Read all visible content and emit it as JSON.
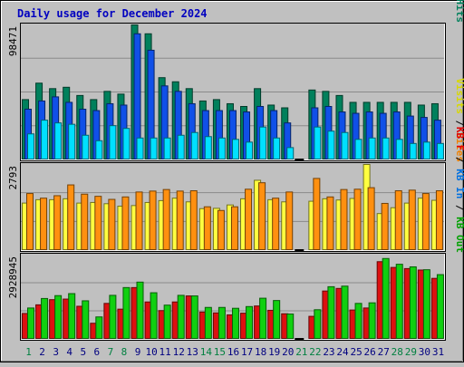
{
  "chart_data": {
    "type": "bar",
    "title": "Daily usage for December 2024",
    "categories": [
      "1",
      "2",
      "3",
      "4",
      "5",
      "6",
      "7",
      "8",
      "9",
      "10",
      "11",
      "12",
      "13",
      "14",
      "15",
      "16",
      "17",
      "18",
      "19",
      "20",
      "21",
      "22",
      "23",
      "24",
      "25",
      "26",
      "27",
      "28",
      "29",
      "30",
      "31"
    ],
    "weekend_days": [
      "1",
      "7",
      "8",
      "14",
      "15",
      "21",
      "22",
      "28",
      "29"
    ],
    "panels": [
      {
        "name": "hits-panel",
        "ymax_label": "98471",
        "ymax": 98471,
        "side_labels": [
          {
            "text": "Pages",
            "color": "#00c0e0"
          },
          {
            "text": " / ",
            "color": "#000000"
          },
          {
            "text": "Files",
            "color": "#0040e0"
          },
          {
            "text": " / ",
            "color": "#000000"
          },
          {
            "text": "Hits",
            "color": "#00805c"
          }
        ],
        "series": [
          {
            "name": "Hits",
            "color": "#00805c",
            "values": [
              44000,
              56000,
              52000,
              53000,
              47000,
              44000,
              50000,
              48000,
              98471,
              92000,
              60000,
              57000,
              52000,
              43000,
              44000,
              41000,
              39000,
              52000,
              40000,
              38000,
              0,
              51000,
              50000,
              47000,
              42000,
              42000,
              42000,
              42000,
              42000,
              40000,
              41000
            ]
          },
          {
            "name": "Files",
            "color": "#1050e8",
            "values": [
              37000,
              43000,
              46000,
              42000,
              37000,
              36000,
              41000,
              40000,
              92000,
              80000,
              54000,
              50000,
              41000,
              36000,
              36000,
              36000,
              35000,
              39000,
              36000,
              27000,
              0,
              38000,
              39000,
              35000,
              34000,
              35000,
              34000,
              35000,
              32000,
              31000,
              29000
            ]
          },
          {
            "name": "Pages",
            "color": "#00e0ff",
            "values": [
              19000,
              29000,
              27000,
              26000,
              18000,
              14000,
              25000,
              23000,
              16000,
              16000,
              16000,
              18000,
              20000,
              17000,
              16000,
              15000,
              13000,
              24000,
              16000,
              9000,
              0,
              24000,
              21000,
              20000,
              15000,
              16000,
              16000,
              15000,
              12000,
              13000,
              12000
            ]
          }
        ]
      },
      {
        "name": "visits-panel",
        "ymax_label": "2793",
        "ymax": 2793,
        "side_labels": [
          {
            "text": "Visits",
            "color": "#d8d800"
          },
          {
            "text": " / ",
            "color": "#000000"
          },
          {
            "text": "Sites",
            "color": "#f08000"
          }
        ],
        "series": [
          {
            "name": "Visits",
            "color": "#ffff40",
            "values": [
              1540,
              1650,
              1650,
              1680,
              1540,
              1560,
              1520,
              1440,
              1460,
              1560,
              1620,
              1700,
              1580,
              1360,
              1370,
              1480,
              1680,
              2280,
              1650,
              1580,
              0,
              1600,
              1680,
              1640,
              1690,
              2793,
              1200,
              1390,
              1540,
              1700,
              1630
            ]
          },
          {
            "name": "Sites",
            "color": "#ff9010",
            "values": [
              1850,
              1700,
              1780,
              2130,
              1830,
              1760,
              1660,
              1740,
              1900,
              1930,
              1980,
              1930,
              1940,
              1420,
              1300,
              1420,
              1990,
              2200,
              1700,
              1900,
              0,
              2340,
              1740,
              1980,
              1990,
              2040,
              1530,
              1940,
              1960,
              1850,
              1940
            ]
          }
        ]
      },
      {
        "name": "kbytes-panel",
        "ymax_label": "2928945",
        "ymax": 2928945,
        "side_labels": [
          {
            "text": "KB F",
            "color": "#e00000"
          },
          {
            "text": " / ",
            "color": "#000000"
          },
          {
            "text": "KB In",
            "color": "#0070e0"
          },
          {
            "text": " / ",
            "color": "#000000"
          },
          {
            "text": "KB Out",
            "color": "#00a000"
          }
        ],
        "series": [
          {
            "name": "KB F",
            "color": "#dd1010",
            "values": [
              900000,
              1200000,
              1380000,
              1400000,
              1150000,
              560000,
              1250000,
              1050000,
              1800000,
              1300000,
              1000000,
              1300000,
              1510000,
              950000,
              920000,
              850000,
              910000,
              1160000,
              1010000,
              890000,
              0,
              800000,
              1680000,
              1770000,
              1020000,
              1090000,
              2700000,
              2500000,
              2460000,
              2410000,
              2120000
            ]
          },
          {
            "name": "KB Out",
            "color": "#10d010",
            "values": [
              1090000,
              1420000,
              1520000,
              1590000,
              1340000,
              780000,
              1530000,
              1800000,
              1990000,
              1620000,
              1190000,
              1530000,
              1510000,
              1110000,
              1110000,
              1080000,
              1140000,
              1430000,
              1350000,
              880000,
              0,
              1030000,
              1830000,
              1850000,
              1250000,
              1270000,
              2810000,
              2610000,
              2520000,
              2420000,
              2250000
            ]
          }
        ]
      }
    ]
  }
}
